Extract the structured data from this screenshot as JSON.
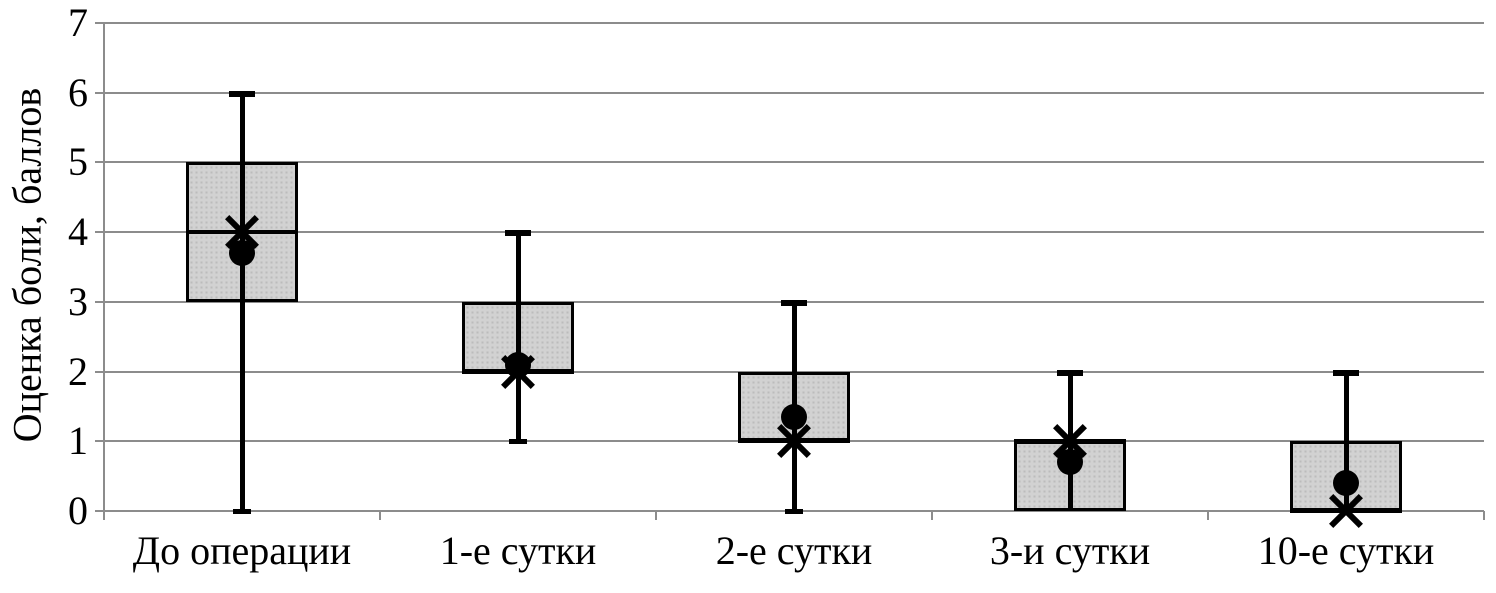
{
  "chart_data": {
    "type": "box",
    "title": "",
    "xlabel": "",
    "ylabel": "Оценка боли, баллов",
    "ylim": [
      0,
      7
    ],
    "ytick_labels": [
      "0",
      "1",
      "2",
      "3",
      "4",
      "5",
      "6",
      "7"
    ],
    "grid": "horizontal",
    "legend": null,
    "categories": [
      "До операции",
      "1-е сутки",
      "2-е сутки",
      "3-и сутки",
      "10-е сутки"
    ],
    "series": [
      {
        "category": "До операции",
        "q1": 3,
        "q3": 5,
        "median": 4,
        "whisker_low": 0,
        "whisker_high": 6,
        "cap_low": true,
        "cap_high": true,
        "mean": 3.7,
        "x_marker": 4.0
      },
      {
        "category": "1-е сутки",
        "q1": 2,
        "q3": 3,
        "median": 2,
        "whisker_low": 1,
        "whisker_high": 4,
        "cap_low": true,
        "cap_high": true,
        "mean": 2.1,
        "x_marker": 2.0
      },
      {
        "category": "2-е сутки",
        "q1": 1,
        "q3": 2,
        "median": 1,
        "whisker_low": 0,
        "whisker_high": 3,
        "cap_low": true,
        "cap_high": true,
        "mean": 1.35,
        "x_marker": 1.0
      },
      {
        "category": "3-и сутки",
        "q1": 0,
        "q3": 1,
        "median": 1,
        "whisker_low": 0,
        "whisker_high": 2,
        "cap_low": false,
        "cap_high": true,
        "mean": 0.7,
        "x_marker": 1.0
      },
      {
        "category": "10-е сутки",
        "q1": 0,
        "q3": 1,
        "median": 0,
        "whisker_low": 0,
        "whisker_high": 2,
        "cap_low": false,
        "cap_high": true,
        "mean": 0.4,
        "x_marker": 0.0
      }
    ],
    "marker_legend": {
      "dot": "mean",
      "cross": "median-marker"
    },
    "colors": {
      "box_fill": "#d2d2d2",
      "box_border": "#000000",
      "whisker": "#000000",
      "marker": "#000000",
      "gridline": "#8c8c8c",
      "axis": "#8c8c8c",
      "text": "#000000",
      "background": "#ffffff"
    }
  }
}
